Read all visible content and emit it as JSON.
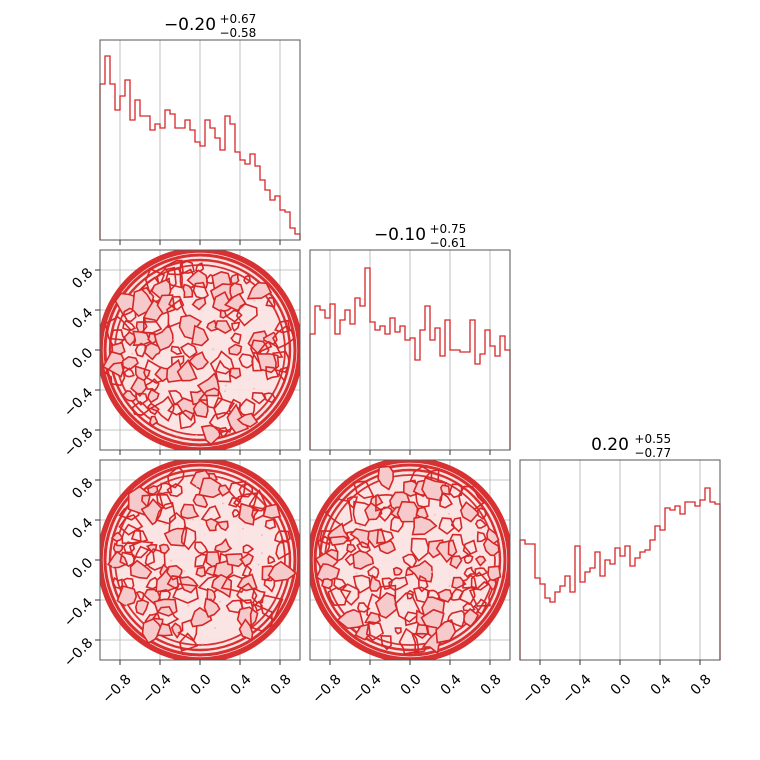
{
  "chart_data": {
    "type": "corner",
    "parameters": 3,
    "color": "#d62728",
    "grid": true,
    "axis_range": [
      -1.0,
      1.0
    ],
    "tick_values": [
      -0.8,
      -0.4,
      0.0,
      0.4,
      0.8
    ],
    "tick_labels": [
      "−0.8",
      "−0.4",
      "0.0",
      "0.4",
      "0.8"
    ],
    "diagonal_titles": [
      {
        "value": "−0.20",
        "plus": "+0.67",
        "minus": "−0.58"
      },
      {
        "value": "−0.10",
        "plus": "+0.75",
        "minus": "−0.61"
      },
      {
        "value": "0.20",
        "plus": "+0.55",
        "minus": "−0.77"
      }
    ],
    "histograms": [
      {
        "bin_range": [
          -1.0,
          1.0
        ],
        "counts": [
          0.78,
          0.92,
          0.78,
          0.65,
          0.72,
          0.8,
          0.6,
          0.7,
          0.62,
          0.62,
          0.55,
          0.58,
          0.56,
          0.65,
          0.63,
          0.56,
          0.56,
          0.6,
          0.55,
          0.49,
          0.47,
          0.6,
          0.56,
          0.51,
          0.45,
          0.62,
          0.58,
          0.44,
          0.4,
          0.38,
          0.43,
          0.37,
          0.3,
          0.25,
          0.2,
          0.22,
          0.15,
          0.14,
          0.06,
          0.03
        ]
      },
      {
        "bin_range": [
          -1.0,
          1.0
        ],
        "counts": [
          0.58,
          0.72,
          0.7,
          0.66,
          0.73,
          0.58,
          0.65,
          0.7,
          0.63,
          0.76,
          0.72,
          0.91,
          0.64,
          0.6,
          0.62,
          0.58,
          0.66,
          0.59,
          0.62,
          0.55,
          0.56,
          0.45,
          0.6,
          0.72,
          0.55,
          0.61,
          0.47,
          0.65,
          0.5,
          0.5,
          0.49,
          0.49,
          0.65,
          0.43,
          0.48,
          0.6,
          0.52,
          0.47,
          0.57,
          0.5
        ]
      },
      {
        "bin_range": [
          -1.0,
          1.0
        ],
        "counts": [
          0.6,
          0.58,
          0.58,
          0.41,
          0.38,
          0.31,
          0.29,
          0.34,
          0.37,
          0.42,
          0.34,
          0.57,
          0.39,
          0.44,
          0.46,
          0.54,
          0.42,
          0.5,
          0.48,
          0.56,
          0.52,
          0.57,
          0.47,
          0.51,
          0.54,
          0.55,
          0.6,
          0.67,
          0.65,
          0.76,
          0.75,
          0.77,
          0.73,
          0.79,
          0.79,
          0.77,
          0.8,
          0.86,
          0.79,
          0.78
        ]
      }
    ],
    "contour_panels": [
      {
        "row": 1,
        "col": 0,
        "level": 0.9
      },
      {
        "row": 2,
        "col": 0,
        "level": 0.9
      },
      {
        "row": 2,
        "col": 1,
        "level": 0.9
      }
    ]
  }
}
